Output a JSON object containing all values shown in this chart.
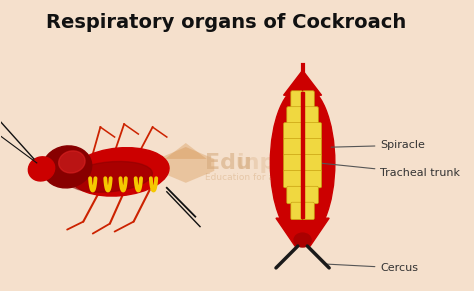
{
  "title": "Respiratory organs of Cockroach",
  "title_fontsize": 14,
  "title_fontweight": "bold",
  "background_color": "#f5e0cc",
  "label_spiracle": "Spiracle",
  "label_tracheal_trunk": "Tracheal trunk",
  "label_cercus": "Cercus",
  "red_color": "#cc0000",
  "dark_red": "#880000",
  "yellow_color": "#f5c800",
  "dark_color": "#111111",
  "red_legs": "#cc2200",
  "label_fontsize": 8,
  "watermark_color": "#d4a87a",
  "watermark_fontsize": 16
}
